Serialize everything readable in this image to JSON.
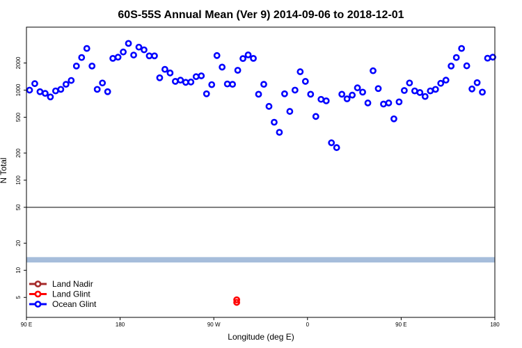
{
  "chart_data": {
    "type": "scatter",
    "title": "60S-55S Annual Mean (Ver 9)   2014-09-06 to 2018-12-01",
    "xlabel": "Longitude (deg E)",
    "ylabel": "N Total",
    "y_scale": "log",
    "x_ticks": [
      "90 E",
      "180",
      "90 W",
      "0",
      "90 E",
      "180"
    ],
    "y_ticks": [
      "5",
      "10",
      "20",
      "50",
      "100",
      "200",
      "500",
      "1000",
      "2000"
    ],
    "x_tick_values": [
      90,
      180,
      270,
      360,
      450,
      540
    ],
    "y_tick_values": [
      5,
      10,
      20,
      50,
      100,
      200,
      500,
      1000,
      2000
    ],
    "xlim": [
      90,
      540
    ],
    "ylim": [
      3,
      5000
    ],
    "panel_divider_y": 50,
    "band": {
      "y_from": 12.2,
      "y_to": 14.0,
      "color": "#a6bddb"
    },
    "legend": {
      "position": "bottom-left",
      "entries": [
        {
          "label": "Land Nadir",
          "color": "#a52a2a"
        },
        {
          "label": "Land Glint",
          "color": "#ff0000"
        },
        {
          "label": "Ocean Glint",
          "color": "#0000ff"
        }
      ]
    },
    "series": [
      {
        "name": "Land Nadir",
        "color": "#a52a2a",
        "points": []
      },
      {
        "name": "Land Glint",
        "color": "#ff0000",
        "points": [
          [
            292,
            4.7
          ],
          [
            292,
            4.4
          ]
        ]
      },
      {
        "name": "Ocean Glint",
        "color": "#0000ff",
        "points": [
          [
            93,
            1000
          ],
          [
            98,
            1180
          ],
          [
            103,
            960
          ],
          [
            108,
            920
          ],
          [
            113,
            840
          ],
          [
            118,
            980
          ],
          [
            123,
            1020
          ],
          [
            128,
            1160
          ],
          [
            133,
            1280
          ],
          [
            138,
            1850
          ],
          [
            143,
            2300
          ],
          [
            148,
            2900
          ],
          [
            153,
            1850
          ],
          [
            158,
            1020
          ],
          [
            163,
            1200
          ],
          [
            168,
            960
          ],
          [
            173,
            2250
          ],
          [
            178,
            2320
          ],
          [
            183,
            2650
          ],
          [
            188,
            3300
          ],
          [
            193,
            2450
          ],
          [
            198,
            3000
          ],
          [
            203,
            2800
          ],
          [
            208,
            2400
          ],
          [
            213,
            2400
          ],
          [
            218,
            1370
          ],
          [
            223,
            1700
          ],
          [
            228,
            1550
          ],
          [
            233,
            1250
          ],
          [
            238,
            1290
          ],
          [
            243,
            1220
          ],
          [
            248,
            1230
          ],
          [
            253,
            1410
          ],
          [
            258,
            1440
          ],
          [
            263,
            910
          ],
          [
            268,
            1150
          ],
          [
            273,
            2420
          ],
          [
            278,
            1800
          ],
          [
            283,
            1170
          ],
          [
            288,
            1160
          ],
          [
            293,
            1660
          ],
          [
            298,
            2240
          ],
          [
            303,
            2460
          ],
          [
            308,
            2250
          ],
          [
            313,
            900
          ],
          [
            318,
            1160
          ],
          [
            323,
            660
          ],
          [
            328,
            440
          ],
          [
            333,
            340
          ],
          [
            338,
            910
          ],
          [
            343,
            580
          ],
          [
            348,
            1000
          ],
          [
            353,
            1600
          ],
          [
            358,
            1250
          ],
          [
            363,
            900
          ],
          [
            368,
            510
          ],
          [
            373,
            790
          ],
          [
            378,
            760
          ],
          [
            383,
            260
          ],
          [
            388,
            230
          ],
          [
            393,
            900
          ],
          [
            398,
            800
          ],
          [
            403,
            880
          ],
          [
            408,
            1060
          ],
          [
            413,
            950
          ],
          [
            418,
            720
          ],
          [
            423,
            1640
          ],
          [
            428,
            1040
          ],
          [
            433,
            700
          ],
          [
            438,
            720
          ],
          [
            443,
            480
          ],
          [
            448,
            740
          ],
          [
            453,
            990
          ],
          [
            458,
            1200
          ],
          [
            463,
            980
          ],
          [
            468,
            940
          ],
          [
            473,
            850
          ],
          [
            478,
            980
          ],
          [
            483,
            1020
          ],
          [
            488,
            1190
          ],
          [
            493,
            1290
          ],
          [
            498,
            1850
          ],
          [
            503,
            2300
          ],
          [
            508,
            2900
          ],
          [
            513,
            1860
          ],
          [
            518,
            1030
          ],
          [
            523,
            1210
          ],
          [
            528,
            950
          ],
          [
            533,
            2260
          ],
          [
            538,
            2320
          ]
        ]
      }
    ]
  }
}
